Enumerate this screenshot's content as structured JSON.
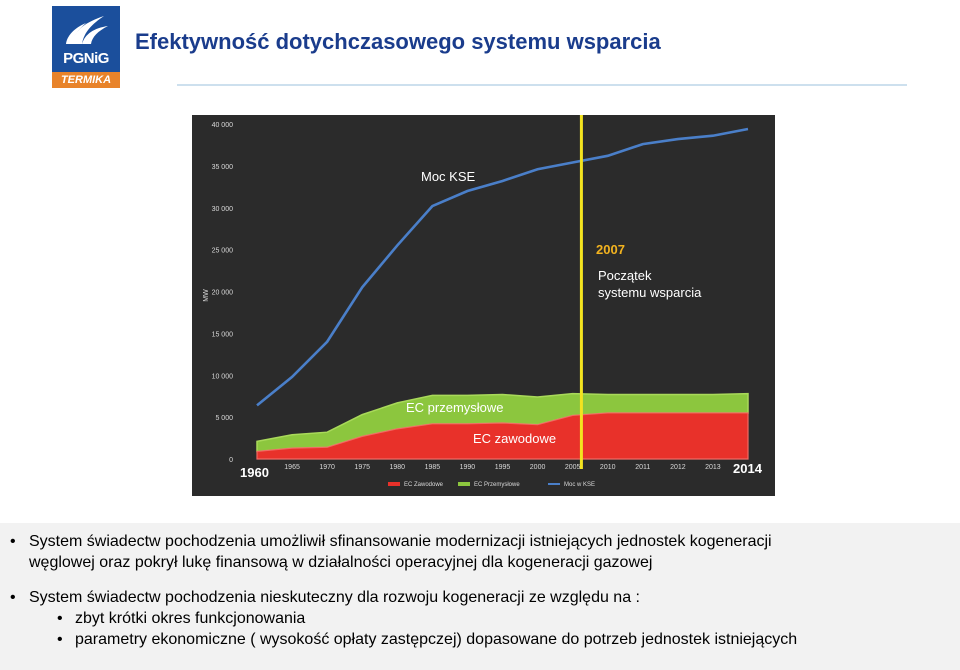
{
  "header": {
    "logo_text": "PGNiG",
    "logo_sub": "TERMIKA",
    "title": "Efektywność dotychczasowego systemu wsparcia"
  },
  "colors": {
    "chart_bg": "#2b2b2b",
    "ec_zawodowe": "#e8312a",
    "ec_przemyslowe": "#8cc63e",
    "moc_kse": "#4a7fc9",
    "marker_line": "#f3e31f",
    "year_2007": "#f3b31f"
  },
  "chart_data": {
    "type": "area",
    "title": "",
    "ylabel": "MW",
    "xlabel": "",
    "ylim": [
      0,
      40000
    ],
    "yticks": [
      0,
      5000,
      10000,
      15000,
      20000,
      25000,
      30000,
      35000,
      40000
    ],
    "ytick_labels": [
      "0",
      "5 000",
      "10 000",
      "15 000",
      "20 000",
      "25 000",
      "30 000",
      "35 000",
      "40 000"
    ],
    "xticks": [
      1960,
      1965,
      1970,
      1975,
      1980,
      1985,
      1990,
      1995,
      2000,
      2005,
      2010,
      2011,
      2012,
      2013,
      2014
    ],
    "xtick_labels": [
      "1960",
      "1965",
      "1970",
      "1975",
      "1980",
      "1985",
      "1990",
      "1995",
      "2000",
      "2005",
      "2010",
      "2011",
      "2012",
      "2013",
      "2014"
    ],
    "grid": false,
    "legend_position": "bottom",
    "series": [
      {
        "name": "EC Zawodowe",
        "kind": "stacked-area",
        "values": [
          900,
          1300,
          1400,
          2700,
          3600,
          4200,
          4200,
          4300,
          4100,
          5200,
          5500,
          5500,
          5500,
          5500,
          5500
        ]
      },
      {
        "name": "EC Przemysłowe",
        "kind": "stacked-area",
        "values": [
          1200,
          1600,
          1800,
          2600,
          3100,
          3400,
          3400,
          3400,
          3300,
          2600,
          2200,
          2200,
          2200,
          2200,
          2300
        ]
      },
      {
        "name": "Moc w KSE",
        "kind": "line",
        "values": [
          6400,
          9800,
          14000,
          20500,
          25500,
          30200,
          32000,
          33200,
          34600,
          35400,
          36200,
          37600,
          38200,
          38600,
          39400
        ]
      }
    ],
    "annotations": {
      "moc_kse": "Moc KSE",
      "year_marker": "2007",
      "start_line1": "Początek",
      "start_line2": "systemu wsparcia",
      "ec_przemyslowe": "EC przemysłowe",
      "ec_zawodowe": "EC zawodowe",
      "first_year": "1960",
      "last_year": "2014"
    }
  },
  "bullets": {
    "b1_line1": "System świadectw pochodzenia umożliwił sfinansowanie modernizacji istniejących jednostek kogeneracji",
    "b1_line2": "węglowej oraz pokrył lukę finansową w działalności operacyjnej dla kogeneracji gazowej",
    "b2": "System świadectw pochodzenia nieskuteczny dla rozwoju kogeneracji ze względu na :",
    "b2_sub1": "zbyt krótki okres funkcjonowania",
    "b2_sub2": "parametry ekonomiczne ( wysokość opłaty zastępczej) dopasowane do potrzeb jednostek istniejących"
  }
}
